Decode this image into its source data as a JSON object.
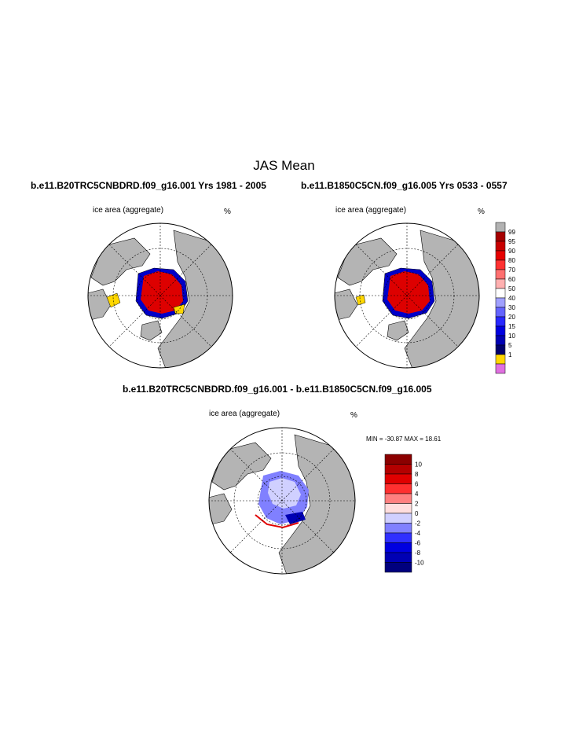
{
  "page": {
    "title": "JAS Mean",
    "left_case": "b.e11.B20TRC5CNBDRD.f09_g16.001  Yrs 1981 - 2005",
    "right_case": "b.e11.B1850C5CN.f09_g16.005  Yrs 0533 - 0557",
    "diff_title": "b.e11.B20TRC5CNBDRD.f09_g16.001 - b.e11.B1850C5CN.f09_g16.005"
  },
  "panels": {
    "left": {
      "variable": "ice area  (aggregate)",
      "units": "%"
    },
    "right": {
      "variable": "ice area  (aggregate)",
      "units": "%"
    },
    "diff": {
      "variable": "ice area  (aggregate)",
      "units": "%",
      "minmax": "MIN = -30.87 MAX =  18.61"
    }
  },
  "colorbars": {
    "concentration": {
      "labels": [
        "99",
        "95",
        "90",
        "80",
        "70",
        "60",
        "50",
        "40",
        "30",
        "20",
        "15",
        "10",
        "5",
        "1"
      ],
      "colors": [
        "#b2b2b2",
        "#a50000",
        "#c80000",
        "#e60000",
        "#ff3232",
        "#ff7070",
        "#ffb0b0",
        "#ffffff",
        "#a0a0ff",
        "#6464ff",
        "#2828ff",
        "#0000e0",
        "#0000b4",
        "#00006e",
        "#ffd700",
        "#e070e0"
      ]
    },
    "difference": {
      "labels": [
        "10",
        "8",
        "6",
        "4",
        "2",
        "0",
        "-2",
        "-4",
        "-6",
        "-8",
        "-10"
      ],
      "colors": [
        "#8b0000",
        "#b40000",
        "#e00000",
        "#ff3030",
        "#ff8080",
        "#ffdede",
        "#d0d0ff",
        "#8080ff",
        "#3030ff",
        "#0000e0",
        "#0000b4",
        "#00007e"
      ]
    }
  },
  "map_colors": {
    "land": "#b4b4b4",
    "ocean": "#ffffff",
    "ice_high": "#dd0000",
    "ice_edge": "#0000c8",
    "ice_low": "#ffd700"
  }
}
